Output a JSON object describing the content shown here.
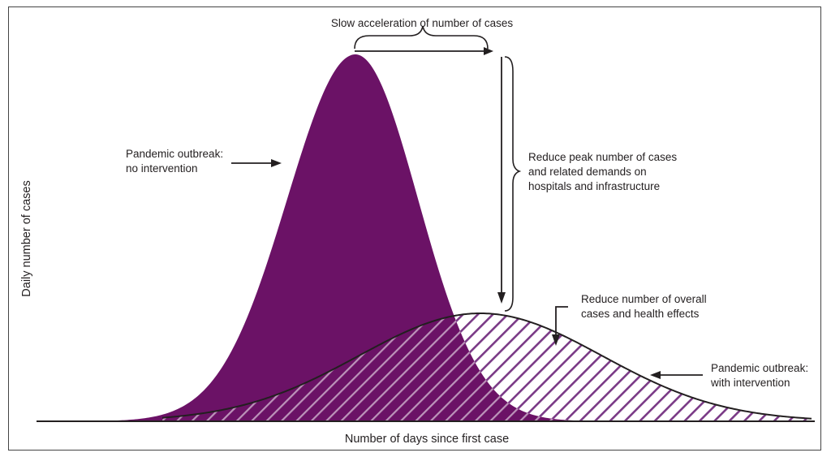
{
  "figure": {
    "x_axis_label": "Number of days since first case",
    "y_axis_label": "Daily number of cases",
    "annotations": {
      "slow_acceleration": "Slow acceleration of number of cases",
      "no_intervention": [
        "Pandemic outbreak:",
        "no intervention"
      ],
      "reduce_peak": [
        "Reduce peak number of cases",
        "and related demands on",
        "hospitals and infrastructure"
      ],
      "reduce_overall": [
        "Reduce number of overall",
        "cases and health effects"
      ],
      "with_intervention": [
        "Pandemic outbreak:",
        "with intervention"
      ]
    }
  },
  "colors": {
    "no_intervention_fill": "#6b1266",
    "hatch": "#7a3a86",
    "outline": "#231f20",
    "frame": "#444444"
  }
}
